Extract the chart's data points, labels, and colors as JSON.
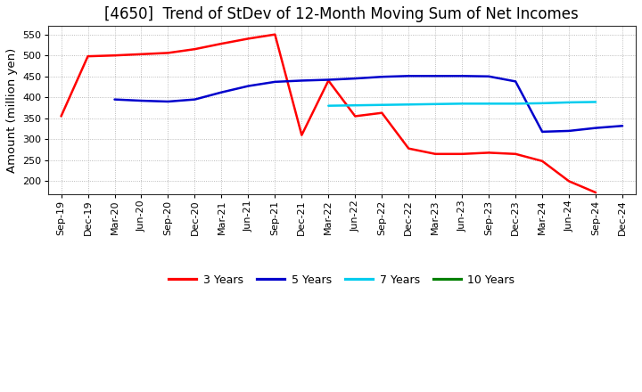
{
  "title": "[4650]  Trend of StDev of 12-Month Moving Sum of Net Incomes",
  "ylabel": "Amount (million yen)",
  "background_color": "#ffffff",
  "grid_color": "#aaaaaa",
  "ylim": [
    170,
    570
  ],
  "yticks": [
    200,
    250,
    300,
    350,
    400,
    450,
    500,
    550
  ],
  "x_labels": [
    "Sep-19",
    "Dec-19",
    "Mar-20",
    "Jun-20",
    "Sep-20",
    "Dec-20",
    "Mar-21",
    "Jun-21",
    "Sep-21",
    "Dec-21",
    "Mar-22",
    "Jun-22",
    "Sep-22",
    "Dec-22",
    "Mar-23",
    "Jun-23",
    "Sep-23",
    "Dec-23",
    "Mar-24",
    "Jun-24",
    "Sep-24",
    "Dec-24"
  ],
  "series_3y": {
    "label": "3 Years",
    "color": "#ff0000",
    "data": [
      355,
      498,
      500,
      503,
      506,
      515,
      528,
      540,
      550,
      310,
      440,
      355,
      363,
      278,
      265,
      265,
      268,
      265,
      248,
      200,
      173,
      null
    ]
  },
  "series_5y": {
    "label": "5 Years",
    "color": "#0000cc",
    "data": [
      null,
      null,
      395,
      392,
      390,
      395,
      412,
      427,
      437,
      440,
      442,
      445,
      449,
      451,
      451,
      451,
      450,
      438,
      318,
      320,
      327,
      332
    ]
  },
  "series_7y": {
    "label": "7 Years",
    "color": "#00ccee",
    "data": [
      null,
      null,
      null,
      null,
      null,
      null,
      null,
      null,
      null,
      null,
      380,
      381,
      382,
      383,
      384,
      385,
      385,
      385,
      386,
      388,
      389,
      null
    ]
  },
  "series_10y": {
    "label": "10 Years",
    "color": "#008000",
    "data": [
      null,
      null,
      null,
      null,
      null,
      null,
      null,
      null,
      null,
      null,
      null,
      null,
      null,
      null,
      null,
      null,
      null,
      null,
      null,
      null,
      null,
      null
    ]
  },
  "title_fontsize": 12,
  "tick_fontsize": 8,
  "label_fontsize": 9.5,
  "linewidth": 1.8
}
